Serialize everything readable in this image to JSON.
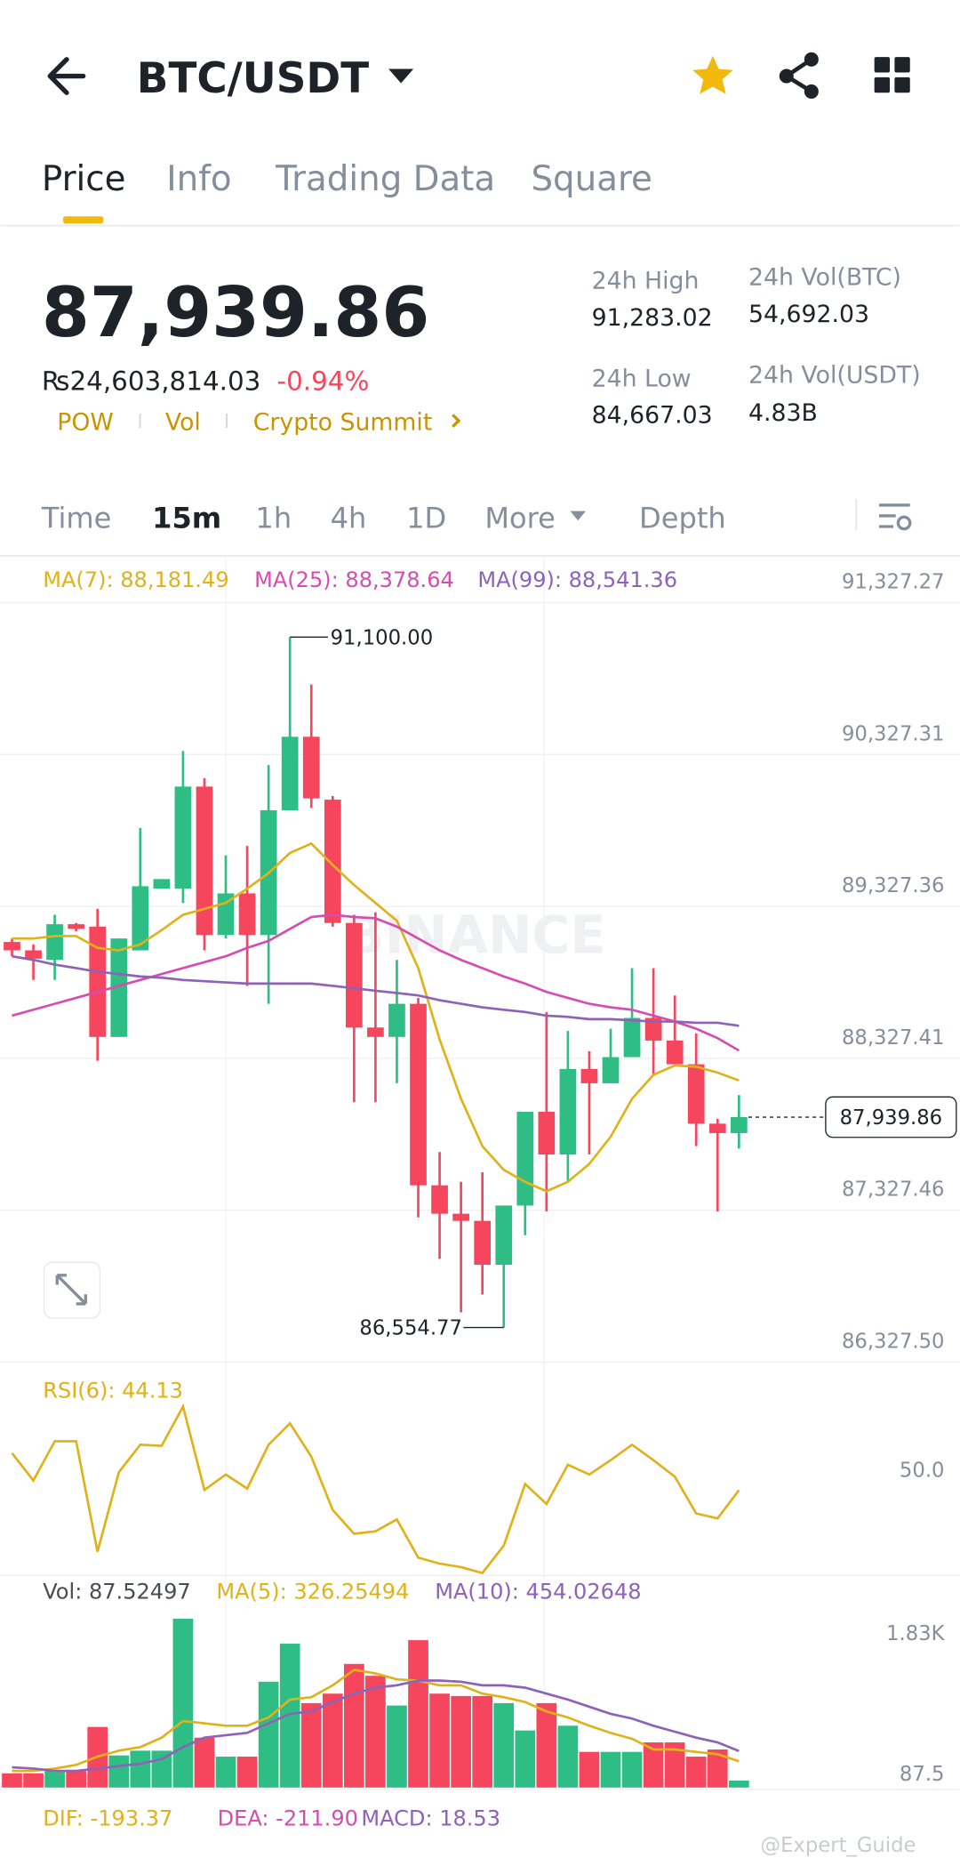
{
  "header": {
    "title": "BTC/USDT"
  },
  "tabs": [
    "Price",
    "Info",
    "Trading Data",
    "Square"
  ],
  "price": {
    "last": "87,939.86",
    "fiat": "₨24,603,814.03",
    "change": "-0.94%",
    "tags": [
      "POW",
      "Vol",
      "Crypto Summit"
    ]
  },
  "stats": [
    {
      "label": "24h High",
      "value": "91,283.02"
    },
    {
      "label": "24h Vol(BTC)",
      "value": "54,692.03"
    },
    {
      "label": "24h Low",
      "value": "84,667.03"
    },
    {
      "label": "24h Vol(USDT)",
      "value": "4.83B"
    }
  ],
  "intervals": [
    "Time",
    "15m",
    "1h",
    "4h",
    "1D",
    "More",
    "Depth"
  ],
  "watermark": "BINANCE",
  "macd": {
    "dif": "DIF: -193.37",
    "dea": "DEA: -211.90",
    "macd": "MACD: 18.53"
  },
  "credit": "@Expert_Guide",
  "chart_data": [
    {
      "type": "candlestick",
      "up_color": "#2EBD85",
      "down_color": "#F6465D",
      "open": [
        89093,
        89038,
        88975,
        89210,
        89194,
        88468,
        89038,
        89444,
        89444,
        90116,
        89139,
        89413,
        89139,
        89960,
        90444,
        90030,
        89218,
        88530,
        88468,
        88686,
        87491,
        87304,
        87257,
        86968,
        87358,
        87975,
        87694,
        88257,
        88163,
        88335,
        88593,
        88444,
        88288,
        87897,
        87835
      ],
      "high": [
        89116,
        89077,
        89272,
        89218,
        89311,
        89116,
        89843,
        89507,
        90350,
        90171,
        89663,
        89725,
        90257,
        91100.0,
        90788,
        90054,
        89272,
        89288,
        88975,
        88725,
        87710,
        87514,
        87577,
        87358,
        87975,
        88632,
        88507,
        88374,
        88522,
        88921,
        88921,
        88741,
        88491,
        87929,
        88085
      ],
      "low": [
        88999,
        88843,
        88843,
        89163,
        88311,
        88468,
        89038,
        89444,
        89350,
        89038,
        89116,
        88804,
        88686,
        89960,
        89975,
        89194,
        88038,
        88038,
        88163,
        87280,
        87007,
        86655,
        86772,
        86554.77,
        87163,
        87319,
        87514,
        87694,
        88163,
        88335,
        88218,
        88288,
        87749,
        87319,
        87733
      ],
      "close": [
        89038,
        88983,
        89210,
        89179,
        88468,
        89116,
        89460,
        89507,
        90116,
        89139,
        89413,
        89139,
        89960,
        90444,
        90038,
        89218,
        88530,
        88468,
        88686,
        87491,
        87304,
        87257,
        86968,
        87358,
        87975,
        87694,
        88257,
        88163,
        88335,
        88593,
        88444,
        88288,
        87897,
        87835,
        87939.86
      ],
      "series": [
        {
          "name": "MA(7): 88,181.49",
          "color": "#E0B21A",
          "values": [
            89116,
            89116,
            89132,
            89132,
            89054,
            89038,
            89077,
            89171,
            89272,
            89311,
            89350,
            89444,
            89546,
            89679,
            89741,
            89600,
            89468,
            89350,
            89233,
            88921,
            88452,
            88061,
            87749,
            87593,
            87514,
            87452,
            87514,
            87632,
            87811,
            88061,
            88218,
            88280,
            88272,
            88233,
            88181.49
          ]
        },
        {
          "name": "MA(25): 88,378.64",
          "color": "#D64CB0",
          "values": [
            88608,
            88647,
            88686,
            88725,
            88764,
            88804,
            88843,
            88882,
            88921,
            88960,
            88999,
            89054,
            89100,
            89179,
            89257,
            89272,
            89257,
            89249,
            89194,
            89116,
            89038,
            88975,
            88921,
            88866,
            88819,
            88764,
            88725,
            88686,
            88663,
            88647,
            88608,
            88569,
            88522,
            88460,
            88378.64
          ]
        },
        {
          "name": "MA(99): 88,541.36",
          "color": "#8E62B8",
          "values": [
            88999,
            88975,
            88944,
            88921,
            88897,
            88882,
            88866,
            88858,
            88843,
            88835,
            88827,
            88819,
            88819,
            88819,
            88819,
            88804,
            88788,
            88772,
            88757,
            88741,
            88710,
            88686,
            88663,
            88647,
            88632,
            88608,
            88600,
            88585,
            88585,
            88577,
            88569,
            88569,
            88561,
            88561,
            88541.36
          ]
        }
      ],
      "annotations": [
        "91,100.00",
        "86,554.77"
      ],
      "last_price_label": "87,939.86",
      "ylim": [
        86327.5,
        91616.8
      ],
      "yticks": [
        {
          "value": 91327.27,
          "label": "91,327.27"
        },
        {
          "value": 90327.31,
          "label": "90,327.31"
        },
        {
          "value": 89327.36,
          "label": "89,327.36"
        },
        {
          "value": 88327.41,
          "label": "88,327.41"
        },
        {
          "value": 87327.46,
          "label": "87,327.46"
        },
        {
          "value": 86327.5,
          "label": "86,327.50"
        }
      ],
      "grid": true
    },
    {
      "type": "line",
      "series": [
        {
          "name": "RSI(6): 44.13",
          "color": "#E0B21A",
          "values": [
            54.7,
            46.9,
            58.1,
            58.1,
            26.6,
            49.3,
            57.1,
            56.8,
            68.0,
            44.2,
            48.6,
            44.6,
            57.1,
            63.2,
            53.7,
            38.5,
            31.7,
            32.4,
            35.8,
            24.9,
            23.2,
            22.2,
            20.5,
            28.3,
            45.9,
            40.2,
            51.4,
            48.6,
            52.7,
            57.1,
            52.7,
            48.0,
            37.5,
            36.1,
            44.13
          ]
        }
      ],
      "ylim": [
        20,
        80
      ],
      "yticks": [
        {
          "value": 50,
          "label": "50.0"
        }
      ]
    },
    {
      "type": "bar",
      "series": [
        {
          "name": "Vol: 87.52497",
          "values": [
            177,
            177,
            207,
            207,
            753,
            399,
            458,
            458,
            2097,
            620,
            384,
            384,
            1315,
            1787,
            1049,
            1167,
            1536,
            1388,
            1019,
            1831,
            1167,
            1137,
            1137,
            1049,
            709,
            1049,
            768,
            443,
            443,
            443,
            561,
            561,
            384,
            473,
            87.52497
          ]
        },
        {
          "name": "MA(5): 326.25494",
          "color": "#E0B21A",
          "values": [
            207,
            207,
            236,
            281,
            384,
            458,
            502,
            620,
            827,
            798,
            768,
            768,
            871,
            1093,
            1123,
            1270,
            1462,
            1418,
            1344,
            1329,
            1270,
            1270,
            1167,
            1123,
            1063,
            945,
            871,
            768,
            679,
            606,
            473,
            473,
            443,
            414,
            326.25494
          ]
        },
        {
          "name": "MA(10): 454.02648",
          "color": "#8E62B8",
          "values": [
            251,
            236,
            207,
            207,
            236,
            266,
            295,
            354,
            502,
            620,
            650,
            679,
            798,
            916,
            945,
            1063,
            1167,
            1241,
            1270,
            1329,
            1329,
            1315,
            1270,
            1270,
            1241,
            1167,
            1093,
            1004,
            916,
            857,
            768,
            694,
            620,
            561,
            454.02648
          ]
        }
      ],
      "ylim": [
        0,
        2200
      ],
      "yticks": [
        {
          "value": 1830,
          "label": "1.83K"
        },
        87.5
      ]
    }
  ]
}
